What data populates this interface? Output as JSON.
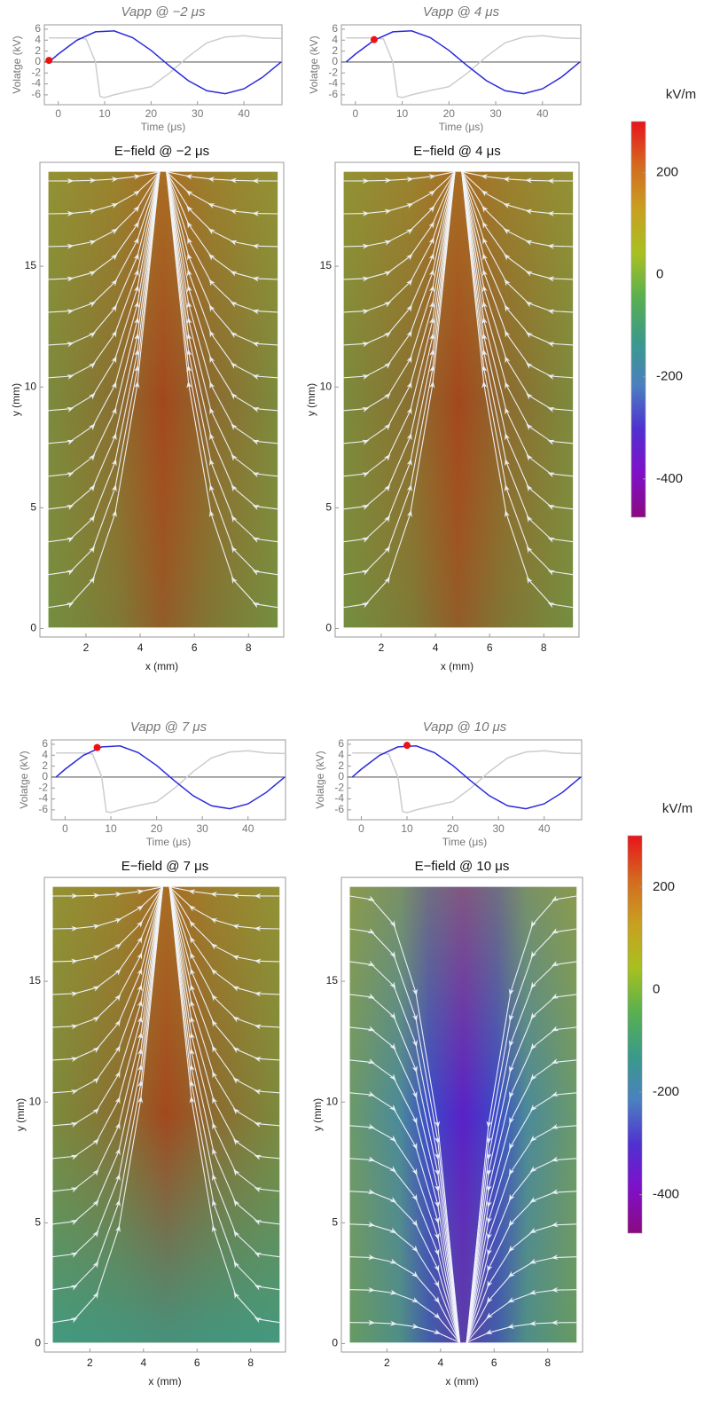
{
  "chart_data": [
    {
      "type": "line",
      "title": "Vapp @ −2 μs",
      "xlabel": "Time (μs)",
      "ylabel": "Volatge (kV)",
      "xlim": [
        -3,
        48.2
      ],
      "ylim": [
        -7.8,
        6.8
      ],
      "xticks": [
        0,
        10,
        20,
        30,
        40
      ],
      "yticks": [
        -6,
        -4,
        -2,
        0,
        2,
        4,
        6
      ],
      "series": [
        {
          "color": "#cccccc",
          "x": [
            -2,
            0,
            4,
            6,
            8,
            9,
            10,
            12,
            16,
            20,
            24,
            28,
            32,
            36,
            40,
            44,
            48
          ],
          "values": [
            4.4,
            4.4,
            4.4,
            4.2,
            0,
            -6.3,
            -6.5,
            -6,
            -5.2,
            -4.5,
            -2,
            1,
            3.5,
            4.6,
            4.8,
            4.4,
            4.3
          ]
        },
        {
          "color": "#2a2adb",
          "x": [
            -2,
            0,
            4,
            8,
            12,
            16,
            20,
            24,
            28,
            32,
            36,
            40,
            44,
            48
          ],
          "values": [
            0,
            1.44,
            3.97,
            5.52,
            5.69,
            4.47,
            2.13,
            -0.73,
            -3.41,
            -5.25,
            -5.79,
            -4.89,
            -2.8,
            0
          ]
        }
      ],
      "marker": {
        "x": -2,
        "y": 0.3,
        "color": "#ee1111"
      }
    },
    {
      "type": "line",
      "title": "Vapp @ 4 μs",
      "xlabel": "Time (μs)",
      "ylabel": "Volatge (kV)",
      "xlim": [
        -3,
        48.2
      ],
      "ylim": [
        -7.8,
        6.8
      ],
      "xticks": [
        0,
        10,
        20,
        30,
        40
      ],
      "yticks": [
        -6,
        -4,
        -2,
        0,
        2,
        4,
        6
      ],
      "series": [
        {
          "color": "#cccccc",
          "x": [
            -2,
            0,
            4,
            6,
            8,
            9,
            10,
            12,
            16,
            20,
            24,
            28,
            32,
            36,
            40,
            44,
            48
          ],
          "values": [
            4.4,
            4.4,
            4.4,
            4.2,
            0,
            -6.3,
            -6.5,
            -6,
            -5.2,
            -4.5,
            -2,
            1,
            3.5,
            4.6,
            4.8,
            4.4,
            4.3
          ]
        },
        {
          "color": "#2a2adb",
          "x": [
            -2,
            0,
            4,
            8,
            12,
            16,
            20,
            24,
            28,
            32,
            36,
            40,
            44,
            48
          ],
          "values": [
            0,
            1.44,
            3.97,
            5.52,
            5.69,
            4.47,
            2.13,
            -0.73,
            -3.41,
            -5.25,
            -5.79,
            -4.89,
            -2.8,
            0
          ]
        }
      ],
      "marker": {
        "x": 4,
        "y": 4.1,
        "color": "#ee1111"
      }
    },
    {
      "type": "field",
      "title": "E−field @ −2 μs",
      "xlabel": "x (mm)",
      "ylabel": "y (mm)",
      "xlim": [
        0.3,
        9.3
      ],
      "ylim": [
        -0.35,
        19.3
      ],
      "xticks": [
        2,
        4,
        6,
        8
      ],
      "yticks": [
        0,
        5,
        10,
        15
      ]
    },
    {
      "type": "field",
      "title": "E−field @ 4 μs",
      "xlabel": "x (mm)",
      "ylabel": "y (mm)",
      "xlim": [
        0.3,
        9.3
      ],
      "ylim": [
        -0.35,
        19.3
      ],
      "xticks": [
        2,
        4,
        6,
        8
      ],
      "yticks": [
        0,
        5,
        10,
        15
      ]
    },
    {
      "type": "colorbar",
      "title": "kV/m",
      "ylim": [
        -475,
        300
      ],
      "yticks": [
        200,
        0,
        -200,
        -400
      ],
      "colors": [
        "#8a0a80",
        "#8010c8",
        "#5030d0",
        "#4a80c0",
        "#3a9a8a",
        "#58b050",
        "#a8c020",
        "#c8a020",
        "#d46a1f",
        "#e8141c"
      ]
    },
    {
      "type": "line",
      "title": "Vapp @ 7 μs",
      "xlabel": "Time (μs)",
      "ylabel": "Volatge (kV)",
      "xlim": [
        -3,
        48.2
      ],
      "ylim": [
        -7.8,
        6.8
      ],
      "xticks": [
        0,
        10,
        20,
        30,
        40
      ],
      "yticks": [
        -6,
        -4,
        -2,
        0,
        2,
        4,
        6
      ],
      "series": [
        {
          "color": "#cccccc",
          "x": [
            -2,
            0,
            4,
            6,
            8,
            9,
            10,
            12,
            16,
            20,
            24,
            28,
            32,
            36,
            40,
            44,
            48
          ],
          "values": [
            4.4,
            4.4,
            4.4,
            4.2,
            0,
            -6.3,
            -6.5,
            -6,
            -5.2,
            -4.5,
            -2,
            1,
            3.5,
            4.6,
            4.8,
            4.4,
            4.3
          ]
        },
        {
          "color": "#2a2adb",
          "x": [
            -2,
            0,
            4,
            8,
            12,
            16,
            20,
            24,
            28,
            32,
            36,
            40,
            44,
            48
          ],
          "values": [
            0,
            1.44,
            3.97,
            5.52,
            5.69,
            4.47,
            2.13,
            -0.73,
            -3.41,
            -5.25,
            -5.79,
            -4.89,
            -2.8,
            0
          ]
        }
      ],
      "marker": {
        "x": 7,
        "y": 5.4,
        "color": "#ee1111"
      }
    },
    {
      "type": "line",
      "title": "Vapp @ 10 μs",
      "xlabel": "Time (μs)",
      "ylabel": "Volatge (kV)",
      "xlim": [
        -3,
        48.2
      ],
      "ylim": [
        -7.8,
        6.8
      ],
      "xticks": [
        0,
        10,
        20,
        30,
        40
      ],
      "yticks": [
        -6,
        -4,
        -2,
        0,
        2,
        4,
        6
      ],
      "series": [
        {
          "color": "#cccccc",
          "x": [
            -2,
            0,
            4,
            6,
            8,
            9,
            10,
            12,
            16,
            20,
            24,
            28,
            32,
            36,
            40,
            44,
            48
          ],
          "values": [
            4.4,
            4.4,
            4.4,
            4.2,
            0,
            -6.3,
            -6.5,
            -6,
            -5.2,
            -4.5,
            -2,
            1,
            3.5,
            4.6,
            4.8,
            4.4,
            4.3
          ]
        },
        {
          "color": "#2a2adb",
          "x": [
            -2,
            0,
            4,
            8,
            12,
            16,
            20,
            24,
            28,
            32,
            36,
            40,
            44,
            48
          ],
          "values": [
            0,
            1.44,
            3.97,
            5.52,
            5.69,
            4.47,
            2.13,
            -0.73,
            -3.41,
            -5.25,
            -5.79,
            -4.89,
            -2.8,
            0
          ]
        }
      ],
      "marker": {
        "x": 10,
        "y": 5.8,
        "color": "#ee1111"
      }
    },
    {
      "type": "field",
      "title": "E−field @ 7 μs",
      "xlabel": "x (mm)",
      "ylabel": "y (mm)",
      "xlim": [
        0.3,
        9.3
      ],
      "ylim": [
        -0.35,
        19.3
      ],
      "xticks": [
        2,
        4,
        6,
        8
      ],
      "yticks": [
        0,
        5,
        10,
        15
      ]
    },
    {
      "type": "field",
      "title": "E−field @ 10 μs",
      "xlabel": "x (mm)",
      "ylabel": "y (mm)",
      "xlim": [
        0.3,
        9.3
      ],
      "ylim": [
        -0.35,
        19.3
      ],
      "xticks": [
        2,
        4,
        6,
        8
      ],
      "yticks": [
        0,
        5,
        10,
        15
      ]
    },
    {
      "type": "colorbar",
      "title": "kV/m",
      "ylim": [
        -475,
        300
      ],
      "yticks": [
        200,
        0,
        -200,
        -400
      ],
      "colors": [
        "#8a0a80",
        "#8010c8",
        "#5030d0",
        "#4a80c0",
        "#3a9a8a",
        "#58b050",
        "#a8c020",
        "#c8a020",
        "#d46a1f",
        "#e8141c"
      ]
    }
  ]
}
